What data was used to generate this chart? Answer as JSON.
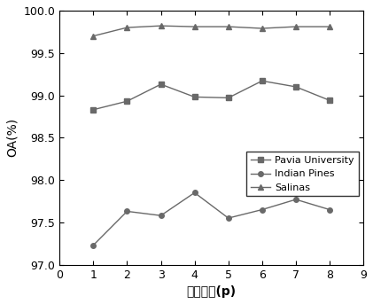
{
  "x": [
    1,
    2,
    3,
    4,
    5,
    6,
    7,
    8
  ],
  "pavia_university": [
    98.83,
    98.93,
    99.13,
    98.98,
    98.97,
    99.17,
    99.1,
    98.94
  ],
  "indian_pines": [
    97.23,
    97.63,
    97.58,
    97.85,
    97.55,
    97.65,
    97.77,
    97.65
  ],
  "salinas": [
    99.7,
    99.8,
    99.82,
    99.81,
    99.81,
    99.79,
    99.81,
    99.81
  ],
  "xlim": [
    0,
    9
  ],
  "ylim": [
    97.0,
    100.0
  ],
  "xlabel": "主成分个(p)",
  "ylabel": "OA(%)",
  "legend_labels": [
    "Pavia University",
    "Indian Pines",
    "Salinas"
  ],
  "line_color": "#696969",
  "marker_pavia": "s",
  "marker_indian": "o",
  "marker_salinas": "^",
  "xticks": [
    0,
    1,
    2,
    3,
    4,
    5,
    6,
    7,
    8,
    9
  ],
  "yticks": [
    97.0,
    97.5,
    98.0,
    98.5,
    99.0,
    99.5,
    100.0
  ]
}
